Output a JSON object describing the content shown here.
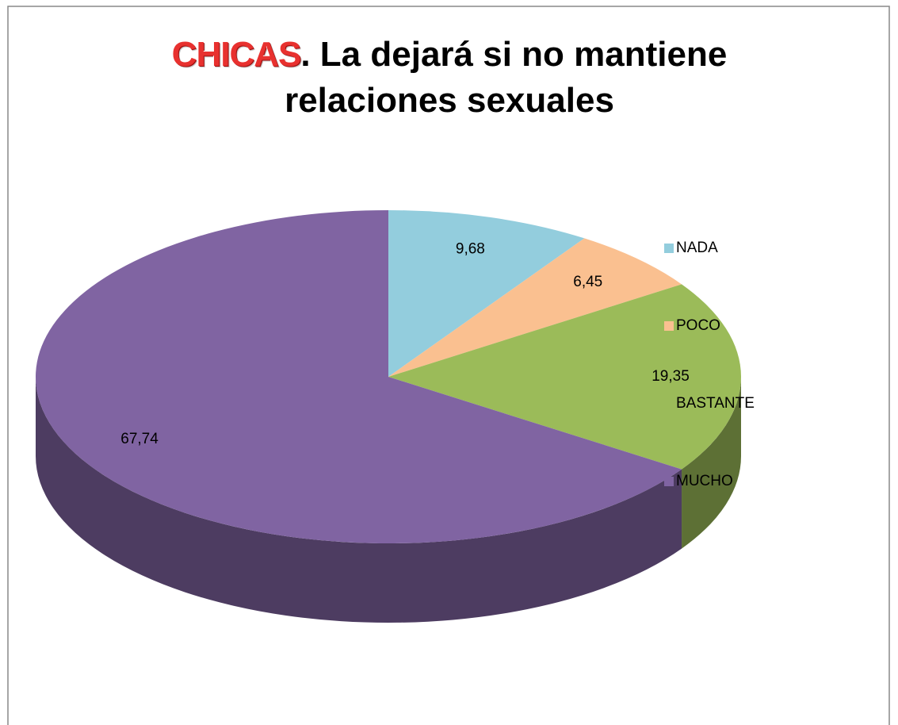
{
  "chart_data": {
    "type": "pie",
    "title_prefix": "CHICAS",
    "title": ". La dejará si no mantiene relaciones sexuales",
    "categories": [
      "NADA",
      "POCO",
      "BASTANTE",
      "MUCHO"
    ],
    "values": [
      9.68,
      6.45,
      19.35,
      67.74
    ],
    "value_labels": [
      "9,68",
      "6,45",
      "19,35",
      "67,74"
    ],
    "colors": [
      "#93cddd",
      "#fac090",
      "#9bbb59",
      "#8064a2"
    ],
    "legend": "right"
  }
}
